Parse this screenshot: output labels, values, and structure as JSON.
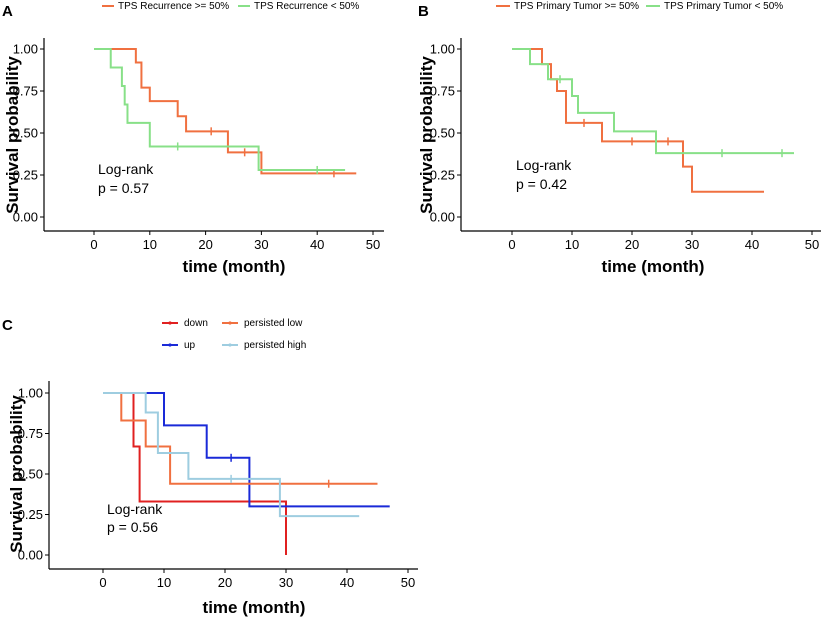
{
  "chart_data": [
    {
      "panel": "A",
      "type": "line",
      "subtype": "kaplan-meier",
      "xlabel": "time (month)",
      "ylabel": "Survival probability",
      "xlim": [
        0,
        50
      ],
      "ylim": [
        0,
        1
      ],
      "xticks": [
        "0",
        "10",
        "20",
        "30",
        "40",
        "50"
      ],
      "yticks": [
        "0.00",
        "0.25",
        "0.50",
        "0.75",
        "1.00"
      ],
      "annotation": [
        "Log-rank",
        "p = 0.57"
      ],
      "series": [
        {
          "name": "TPS Recurrence >= 50%",
          "color": "#f07040",
          "steps": [
            [
              0,
              1.0
            ],
            [
              7.5,
              0.92
            ],
            [
              8.5,
              0.77
            ],
            [
              10,
              0.69
            ],
            [
              15,
              0.6
            ],
            [
              16.5,
              0.51
            ],
            [
              24,
              0.385
            ],
            [
              30,
              0.26
            ],
            [
              47,
              0.26
            ]
          ],
          "censors": [
            [
              21,
              0.51
            ],
            [
              27,
              0.385
            ],
            [
              43,
              0.26
            ]
          ]
        },
        {
          "name": "TPS Recurrence < 50%",
          "color": "#88e088",
          "steps": [
            [
              0,
              1.0
            ],
            [
              3,
              0.89
            ],
            [
              5,
              0.78
            ],
            [
              5.5,
              0.67
            ],
            [
              6,
              0.56
            ],
            [
              10,
              0.42
            ],
            [
              29.5,
              0.28
            ],
            [
              45,
              0.28
            ]
          ],
          "censors": [
            [
              15,
              0.42
            ],
            [
              40,
              0.28
            ]
          ]
        }
      ]
    },
    {
      "panel": "B",
      "type": "line",
      "subtype": "kaplan-meier",
      "xlabel": "time (month)",
      "ylabel": "Survival probability",
      "xlim": [
        0,
        50
      ],
      "ylim": [
        0,
        1
      ],
      "xticks": [
        "0",
        "10",
        "20",
        "30",
        "40",
        "50"
      ],
      "yticks": [
        "0.00",
        "0.25",
        "0.50",
        "0.75",
        "1.00"
      ],
      "annotation": [
        "Log-rank",
        "p = 0.42"
      ],
      "series": [
        {
          "name": "TPS Primary Tumor >= 50%",
          "color": "#f07040",
          "steps": [
            [
              0,
              1.0
            ],
            [
              5,
              0.91
            ],
            [
              6.5,
              0.82
            ],
            [
              7.5,
              0.75
            ],
            [
              9,
              0.56
            ],
            [
              15,
              0.45
            ],
            [
              28.5,
              0.3
            ],
            [
              30,
              0.15
            ],
            [
              42,
              0.15
            ]
          ],
          "censors": [
            [
              12,
              0.56
            ],
            [
              20,
              0.45
            ],
            [
              26,
              0.45
            ]
          ]
        },
        {
          "name": "TPS Primary Tumor < 50%",
          "color": "#88e088",
          "steps": [
            [
              0,
              1.0
            ],
            [
              3,
              0.91
            ],
            [
              6,
              0.82
            ],
            [
              10,
              0.72
            ],
            [
              11,
              0.62
            ],
            [
              17,
              0.51
            ],
            [
              24,
              0.38
            ],
            [
              47,
              0.38
            ]
          ],
          "censors": [
            [
              8,
              0.82
            ],
            [
              35,
              0.38
            ],
            [
              45,
              0.38
            ]
          ]
        }
      ]
    },
    {
      "panel": "C",
      "type": "line",
      "subtype": "kaplan-meier",
      "xlabel": "time (month)",
      "ylabel": "Survival probability",
      "xlim": [
        0,
        50
      ],
      "ylim": [
        0,
        1
      ],
      "xticks": [
        "0",
        "10",
        "20",
        "30",
        "40",
        "50"
      ],
      "yticks": [
        "0.00",
        "0.25",
        "0.50",
        "0.75",
        "1.00"
      ],
      "annotation": [
        "Log-rank",
        "p = 0.56"
      ],
      "series": [
        {
          "name": "down",
          "color": "#e02020",
          "steps": [
            [
              0,
              1.0
            ],
            [
              5,
              1.0
            ],
            [
              5,
              0.67
            ],
            [
              6,
              0.33
            ],
            [
              30,
              0.0
            ]
          ],
          "censors": [],
          "final_drop": true
        },
        {
          "name": "up",
          "color": "#1a2ad8",
          "steps": [
            [
              0,
              1.0
            ],
            [
              10,
              0.8
            ],
            [
              17,
              0.6
            ],
            [
              24,
              0.3
            ],
            [
              47,
              0.3
            ]
          ],
          "censors": [
            [
              21,
              0.6
            ]
          ]
        },
        {
          "name": "persisted low",
          "color": "#f07040",
          "steps": [
            [
              0,
              1.0
            ],
            [
              3,
              0.83
            ],
            [
              7,
              0.67
            ],
            [
              11,
              0.44
            ],
            [
              45,
              0.44
            ]
          ],
          "censors": [
            [
              37,
              0.44
            ]
          ]
        },
        {
          "name": "persisted high",
          "color": "#9ecde0",
          "steps": [
            [
              0,
              1.0
            ],
            [
              7,
              0.88
            ],
            [
              9,
              0.63
            ],
            [
              14,
              0.47
            ],
            [
              29,
              0.24
            ],
            [
              42,
              0.24
            ]
          ],
          "censors": [
            [
              21,
              0.47
            ]
          ]
        }
      ]
    }
  ]
}
